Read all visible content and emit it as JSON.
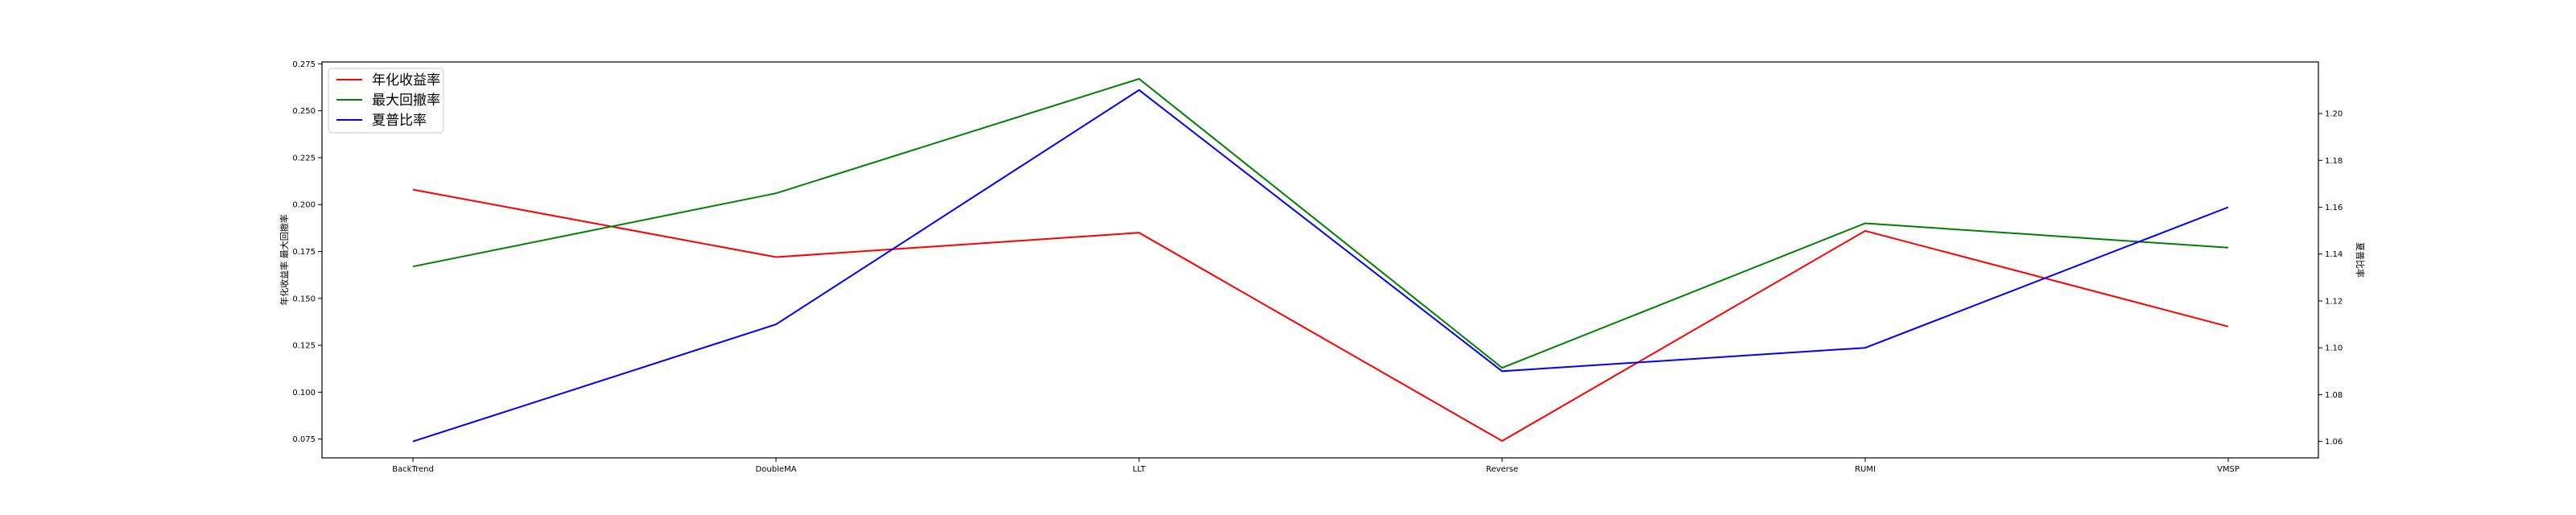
{
  "chart_data": {
    "type": "line",
    "categories": [
      "BackTrend",
      "DoubleMA",
      "LLT",
      "Reverse",
      "RUMI",
      "VMSP"
    ],
    "left_axis": {
      "ylabel": "年化收益率 最大回撤率",
      "ylim": [
        0.065,
        0.276
      ],
      "ticks": [
        0.075,
        0.1,
        0.125,
        0.15,
        0.175,
        0.2,
        0.225,
        0.25,
        0.275
      ],
      "tick_labels": [
        "0.075",
        "0.100",
        "0.125",
        "0.150",
        "0.175",
        "0.200",
        "0.225",
        "0.250",
        "0.275"
      ]
    },
    "right_axis": {
      "ylabel": "夏普比率",
      "ylim": [
        1.053,
        1.222
      ],
      "ticks": [
        1.06,
        1.08,
        1.1,
        1.12,
        1.14,
        1.16,
        1.18,
        1.2
      ],
      "tick_labels": [
        "1.06",
        "1.08",
        "1.10",
        "1.12",
        "1.14",
        "1.16",
        "1.18",
        "1.20"
      ]
    },
    "series": [
      {
        "name": "年化收益率",
        "axis": "left",
        "color": "#ff0000",
        "values": [
          0.208,
          0.172,
          0.185,
          0.074,
          0.186,
          0.135
        ]
      },
      {
        "name": "最大回撤率",
        "axis": "left",
        "color": "#008000",
        "values": [
          0.167,
          0.206,
          0.267,
          0.113,
          0.19,
          0.177
        ]
      },
      {
        "name": "夏普比率",
        "axis": "right",
        "color": "#0000ff",
        "values": [
          1.06,
          1.11,
          1.21,
          1.09,
          1.1,
          1.16
        ]
      }
    ],
    "legend_position": "upper-left",
    "grid": false
  }
}
